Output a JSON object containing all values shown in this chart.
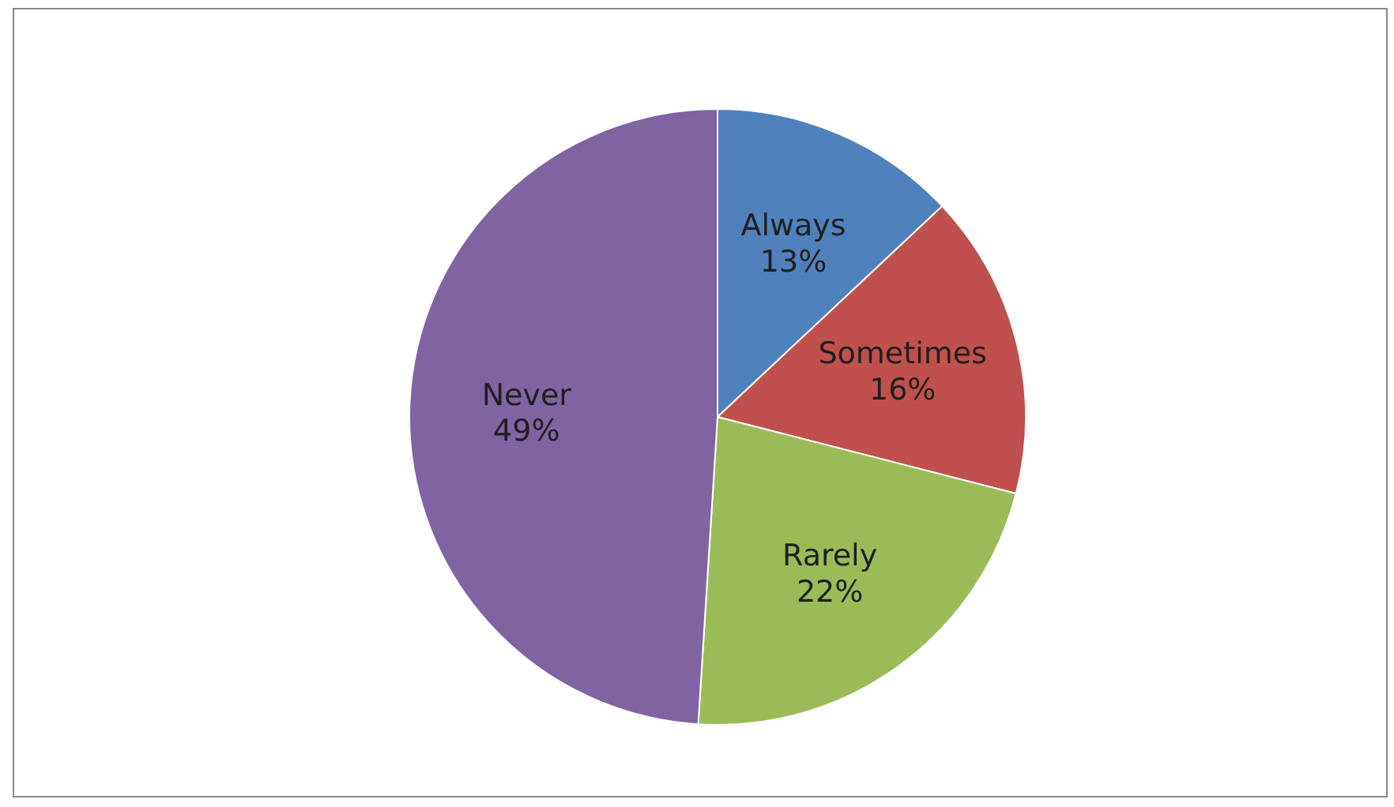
{
  "chart_data": {
    "type": "pie",
    "categories": [
      "Always",
      "Sometimes",
      "Rarely",
      "Never"
    ],
    "values": [
      13,
      16,
      22,
      49
    ],
    "colors": [
      "#4f81bd",
      "#c0504d",
      "#9bbb59",
      "#8064a2"
    ],
    "value_labels": [
      "13%",
      "16%",
      "22%",
      "49%"
    ],
    "legend": false
  }
}
